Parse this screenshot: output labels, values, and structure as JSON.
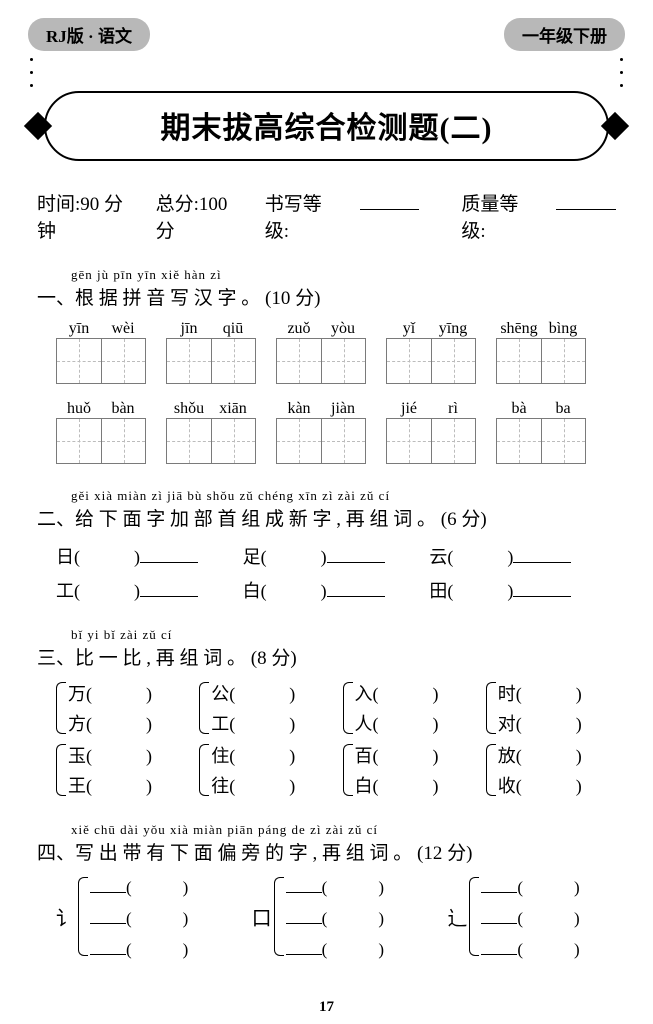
{
  "header": {
    "left_pill": "RJ版 · 语文",
    "right_pill": "一年级下册"
  },
  "title": "期末拔高综合检测题(二)",
  "meta": {
    "time_label": "时间:90 分钟",
    "total_label": "总分:100 分",
    "writing_grade_label": "书写等级:",
    "quality_grade_label": "质量等级:"
  },
  "sec1": {
    "pinyin_header": "gēn jù pīn yīn xiě hàn zì",
    "title": "一、根 据 拼 音 写 汉 字 。 (10 分)",
    "row1": [
      [
        "yīn",
        "wèi"
      ],
      [
        "jīn",
        "qiū"
      ],
      [
        "zuǒ",
        "yòu"
      ],
      [
        "yǐ",
        "yīng"
      ],
      [
        "shēng",
        "bìng"
      ]
    ],
    "row2": [
      [
        "huǒ",
        "bàn"
      ],
      [
        "shǒu",
        "xiān"
      ],
      [
        "kàn",
        "jiàn"
      ],
      [
        "jié",
        "rì"
      ],
      [
        "bà",
        "ba"
      ]
    ]
  },
  "sec2": {
    "pinyin_header": "gěi xià miàn zì jiā bù shǒu zǔ chéng xīn zì   zài zǔ cí",
    "title": "二、给 下 面 字 加 部 首 组 成  新 字 , 再 组 词 。 (6 分)",
    "items": [
      "日",
      "足",
      "云",
      "工",
      "白",
      "田"
    ]
  },
  "sec3": {
    "pinyin_header": "bǐ yi bǐ  zài zǔ cí",
    "title": "三、比 一 比 , 再 组 词 。 (8 分)",
    "pairs": [
      [
        [
          "万",
          "方"
        ],
        [
          "公",
          "工"
        ],
        [
          "入",
          "人"
        ],
        [
          "时",
          "对"
        ]
      ],
      [
        [
          "玉",
          "王"
        ],
        [
          "住",
          "往"
        ],
        [
          "百",
          "白"
        ],
        [
          "放",
          "收"
        ]
      ]
    ]
  },
  "sec4": {
    "pinyin_header": "xiě chū dài yǒu xià miàn piān páng de zì   zài zǔ cí",
    "title": "四、写 出 带 有 下 面  偏  旁  的 字 , 再 组 词 。 (12 分)",
    "radicals": [
      "讠",
      "口",
      "辶"
    ]
  },
  "page_number": "17",
  "colors": {
    "pill_bg": "#b8b8b8",
    "text": "#000000",
    "box_border": "#7a7a7a",
    "box_dash": "#bcbcbc"
  }
}
